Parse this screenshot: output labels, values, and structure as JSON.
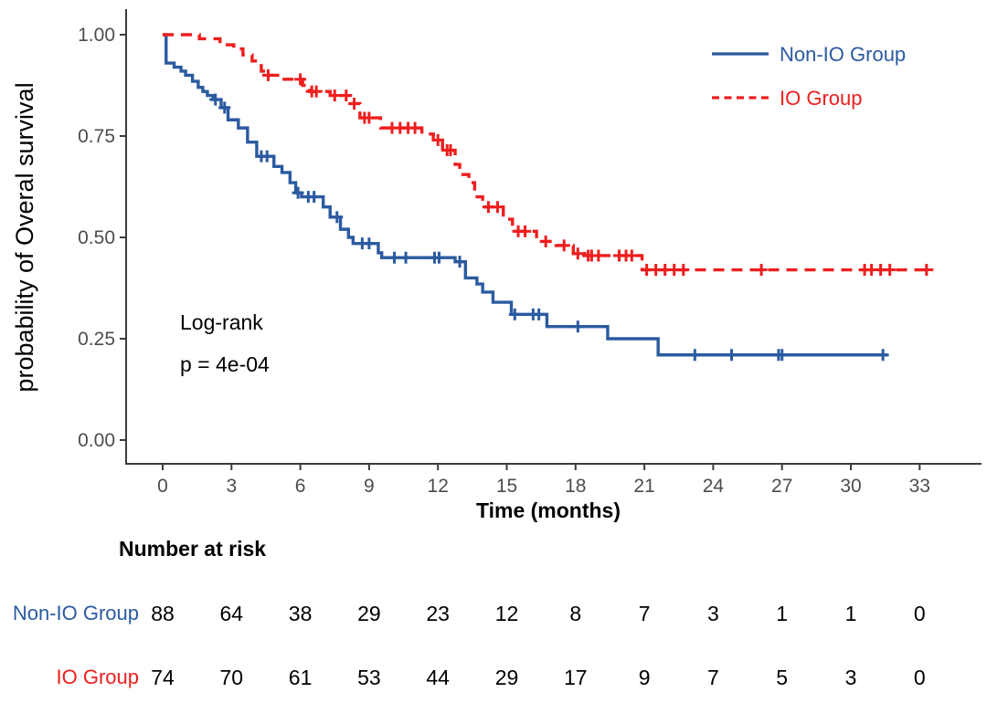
{
  "figure": {
    "ylabel": "probability of Overal survival",
    "xlabel": "Time (months)",
    "annotation_line1": "Log-rank",
    "annotation_line2": "p = 4e-04"
  },
  "legend": {
    "position": "top-right",
    "items": [
      {
        "label": "Non-IO Group",
        "color": "#2B5AA0",
        "line": "solid"
      },
      {
        "label": "IO Group",
        "color": "#EE1E1E",
        "line": "dashed"
      }
    ]
  },
  "chart_data": {
    "type": "line",
    "subtype": "kaplan-meier-step",
    "title": "",
    "xlabel": "Time (months)",
    "ylabel": "probability of Overal survival",
    "xlim": [
      0,
      33
    ],
    "ylim": [
      0,
      1
    ],
    "xticks": [
      0,
      3,
      6,
      9,
      12,
      15,
      18,
      21,
      24,
      27,
      30,
      33
    ],
    "yticks": [
      "0.00",
      "0.25",
      "0.50",
      "0.75",
      "1.00"
    ],
    "grid": false,
    "legend_position": "top-right",
    "annotation": [
      "Log-rank",
      "p = 4e-04"
    ],
    "series": [
      {
        "name": "Non-IO Group",
        "color": "#2B5AA0",
        "line": "solid",
        "steps": [
          [
            0,
            1.0
          ],
          [
            0.15,
            0.93
          ],
          [
            0.5,
            0.92
          ],
          [
            0.8,
            0.91
          ],
          [
            1.0,
            0.9
          ],
          [
            1.3,
            0.885
          ],
          [
            1.55,
            0.87
          ],
          [
            1.75,
            0.86
          ],
          [
            1.95,
            0.85
          ],
          [
            2.2,
            0.84
          ],
          [
            2.55,
            0.82
          ],
          [
            2.85,
            0.79
          ],
          [
            3.3,
            0.77
          ],
          [
            3.7,
            0.735
          ],
          [
            4.1,
            0.7
          ],
          [
            4.85,
            0.675
          ],
          [
            5.2,
            0.66
          ],
          [
            5.55,
            0.635
          ],
          [
            5.8,
            0.61
          ],
          [
            6.05,
            0.6
          ],
          [
            7.0,
            0.575
          ],
          [
            7.3,
            0.55
          ],
          [
            7.75,
            0.52
          ],
          [
            8.1,
            0.5
          ],
          [
            8.3,
            0.485
          ],
          [
            9.4,
            0.462
          ],
          [
            9.55,
            0.45
          ],
          [
            12.75,
            0.44
          ],
          [
            13.2,
            0.4
          ],
          [
            13.7,
            0.385
          ],
          [
            13.95,
            0.365
          ],
          [
            14.4,
            0.34
          ],
          [
            15.2,
            0.31
          ],
          [
            16.75,
            0.28
          ],
          [
            19.4,
            0.25
          ],
          [
            21.6,
            0.21
          ],
          [
            31.6,
            0.21
          ]
        ],
        "censors": [
          [
            2.3,
            0.84
          ],
          [
            2.7,
            0.82
          ],
          [
            4.3,
            0.7
          ],
          [
            4.55,
            0.7
          ],
          [
            5.9,
            0.61
          ],
          [
            6.35,
            0.6
          ],
          [
            6.6,
            0.6
          ],
          [
            7.6,
            0.55
          ],
          [
            8.7,
            0.485
          ],
          [
            9.0,
            0.485
          ],
          [
            10.1,
            0.45
          ],
          [
            10.6,
            0.45
          ],
          [
            11.85,
            0.45
          ],
          [
            12.05,
            0.45
          ],
          [
            12.95,
            0.44
          ],
          [
            15.35,
            0.31
          ],
          [
            16.15,
            0.31
          ],
          [
            16.4,
            0.31
          ],
          [
            18.1,
            0.28
          ],
          [
            23.2,
            0.21
          ],
          [
            24.8,
            0.21
          ],
          [
            26.85,
            0.21
          ],
          [
            27.0,
            0.21
          ],
          [
            31.4,
            0.21
          ]
        ]
      },
      {
        "name": "IO Group",
        "color": "#EE1E1E",
        "line": "dashed",
        "steps": [
          [
            0,
            1.0
          ],
          [
            1.6,
            0.99
          ],
          [
            2.5,
            0.975
          ],
          [
            3.1,
            0.965
          ],
          [
            3.5,
            0.95
          ],
          [
            3.9,
            0.935
          ],
          [
            4.3,
            0.91
          ],
          [
            4.5,
            0.9
          ],
          [
            5.1,
            0.89
          ],
          [
            6.1,
            0.875
          ],
          [
            6.4,
            0.86
          ],
          [
            7.3,
            0.85
          ],
          [
            8.2,
            0.83
          ],
          [
            8.6,
            0.795
          ],
          [
            9.5,
            0.77
          ],
          [
            11.3,
            0.755
          ],
          [
            11.8,
            0.74
          ],
          [
            12.2,
            0.715
          ],
          [
            12.75,
            0.68
          ],
          [
            12.95,
            0.655
          ],
          [
            13.35,
            0.635
          ],
          [
            13.6,
            0.6
          ],
          [
            13.95,
            0.575
          ],
          [
            14.85,
            0.545
          ],
          [
            15.25,
            0.515
          ],
          [
            16.3,
            0.49
          ],
          [
            17.15,
            0.48
          ],
          [
            17.9,
            0.46
          ],
          [
            18.4,
            0.455
          ],
          [
            20.9,
            0.42
          ],
          [
            33.6,
            0.42
          ]
        ],
        "censors": [
          [
            4.6,
            0.9
          ],
          [
            6.0,
            0.89
          ],
          [
            6.5,
            0.86
          ],
          [
            6.7,
            0.86
          ],
          [
            7.5,
            0.85
          ],
          [
            8.0,
            0.85
          ],
          [
            8.35,
            0.83
          ],
          [
            8.8,
            0.795
          ],
          [
            9.0,
            0.795
          ],
          [
            10.0,
            0.77
          ],
          [
            10.35,
            0.77
          ],
          [
            10.7,
            0.77
          ],
          [
            11.0,
            0.77
          ],
          [
            12.0,
            0.74
          ],
          [
            12.4,
            0.715
          ],
          [
            12.55,
            0.715
          ],
          [
            14.2,
            0.575
          ],
          [
            14.6,
            0.575
          ],
          [
            15.5,
            0.515
          ],
          [
            15.8,
            0.515
          ],
          [
            16.7,
            0.49
          ],
          [
            17.5,
            0.48
          ],
          [
            18.1,
            0.46
          ],
          [
            18.55,
            0.455
          ],
          [
            18.7,
            0.455
          ],
          [
            19.0,
            0.455
          ],
          [
            19.9,
            0.455
          ],
          [
            20.2,
            0.455
          ],
          [
            20.45,
            0.455
          ],
          [
            21.1,
            0.42
          ],
          [
            21.5,
            0.42
          ],
          [
            21.9,
            0.42
          ],
          [
            22.3,
            0.42
          ],
          [
            22.7,
            0.42
          ],
          [
            26.1,
            0.42
          ],
          [
            30.6,
            0.42
          ],
          [
            30.9,
            0.42
          ],
          [
            31.3,
            0.42
          ],
          [
            31.7,
            0.42
          ],
          [
            33.3,
            0.42
          ]
        ]
      }
    ]
  },
  "risk_table": {
    "title": "Number at risk",
    "times": [
      0,
      3,
      6,
      9,
      12,
      15,
      18,
      21,
      24,
      27,
      30,
      33
    ],
    "rows": [
      {
        "label": "Non-IO Group",
        "color": "#2B5AA0",
        "values": [
          88,
          64,
          38,
          29,
          23,
          12,
          8,
          7,
          3,
          1,
          1,
          0
        ]
      },
      {
        "label": "IO Group",
        "color": "#EE1E1E",
        "values": [
          74,
          70,
          61,
          53,
          44,
          29,
          17,
          9,
          7,
          5,
          3,
          0
        ]
      }
    ]
  },
  "colors": {
    "non_io": "#2B5AA0",
    "io": "#EE1E1E",
    "axis": "#3c3c3c",
    "tick_text": "#4d4d4d",
    "background": "#ffffff"
  }
}
